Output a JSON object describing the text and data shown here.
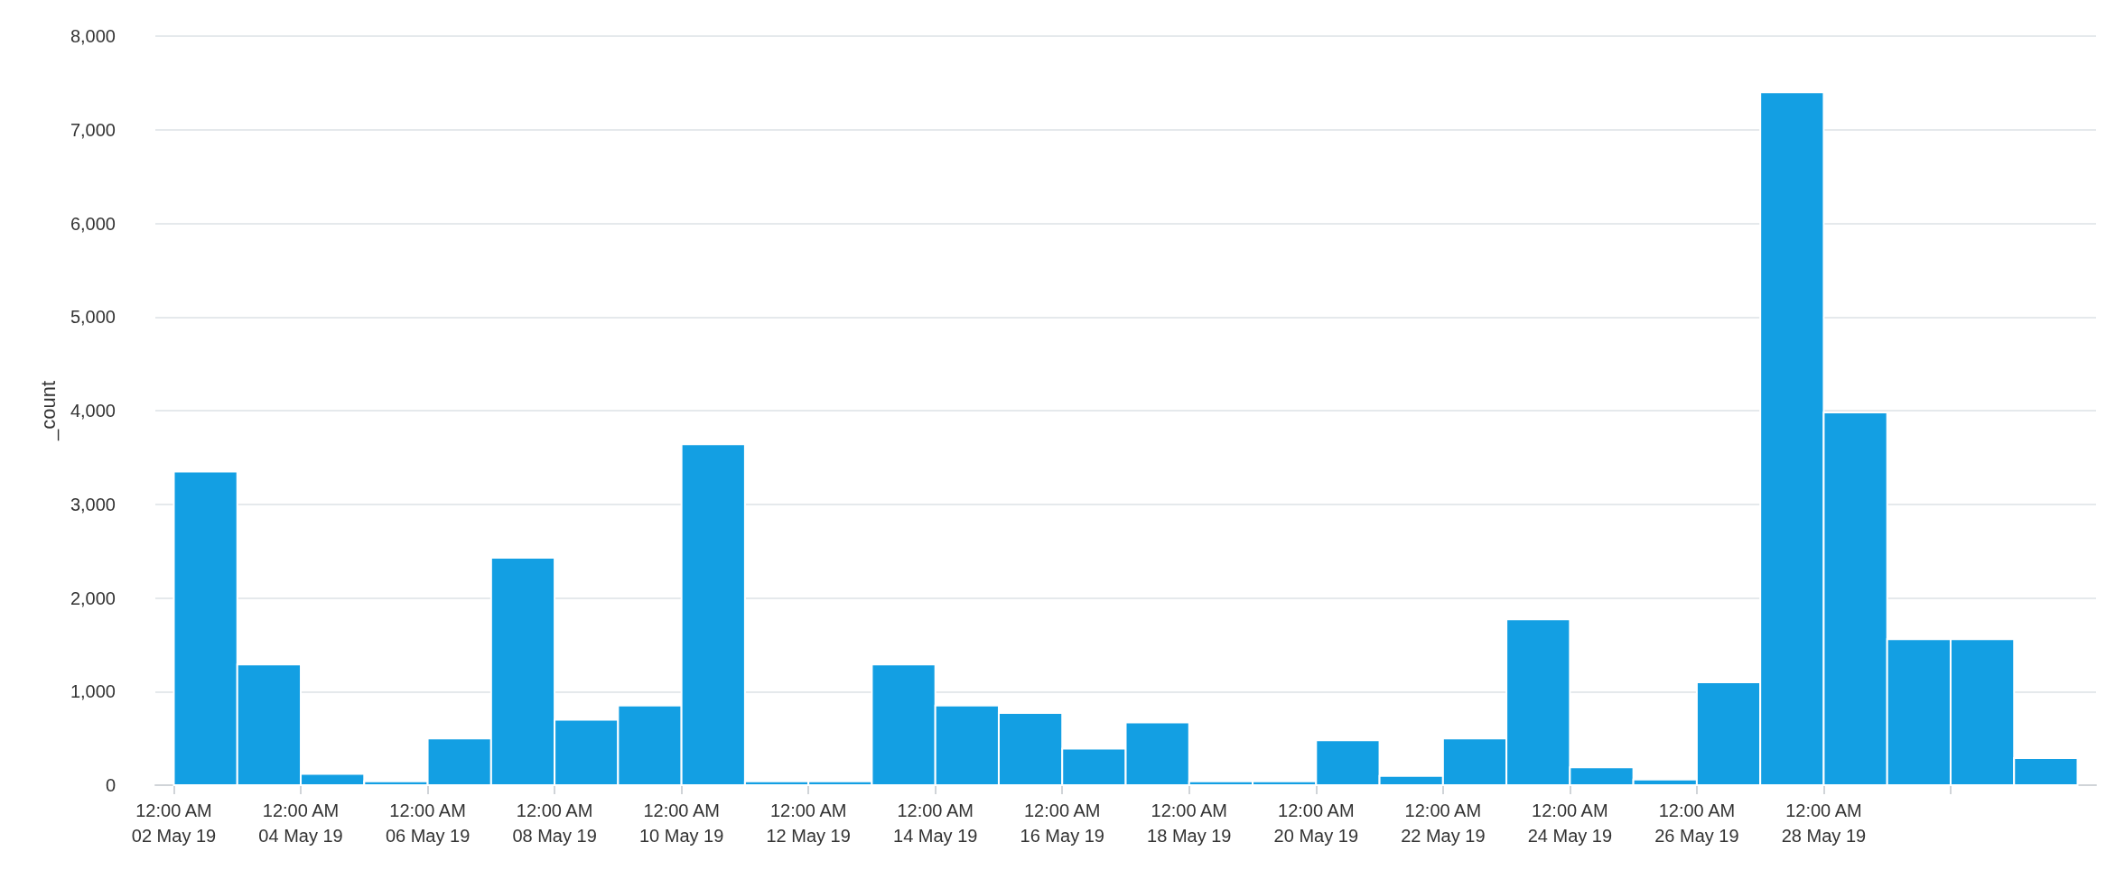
{
  "chart_data": {
    "type": "histogram",
    "ylabel": "_count",
    "color": "#139fe3",
    "bins": [
      "--05-02",
      "--05-03",
      "--05-04",
      "--05-05",
      "--05-06",
      "--05-07",
      "--05-08",
      "--05-09",
      "--05-10",
      "--05-11",
      "--05-12",
      "--05-13",
      "--05-14",
      "--05-15",
      "--05-16",
      "--05-17",
      "--05-18",
      "--05-19",
      "--05-20",
      "--05-21",
      "--05-22",
      "--05-23",
      "--05-24",
      "--05-25",
      "--05-26",
      "--05-27",
      "--05-28",
      "--05-29",
      "--05-30",
      "--05-31",
      "--06-01"
    ],
    "values": [
      3350,
      1290,
      120,
      40,
      500,
      2430,
      700,
      850,
      3640,
      40,
      40,
      1290,
      850,
      770,
      390,
      670,
      40,
      40,
      480,
      100,
      500,
      1770,
      190,
      60,
      1100,
      7400,
      3980,
      1560,
      1560,
      290
    ],
    "xlim": [
      "--05-01T17:00",
      "--06-01T07:00"
    ],
    "xticks": [
      {
        "value": "--05-02",
        "label": "12:00 AM\n02 May 19"
      },
      {
        "value": "--05-04",
        "label": "12:00 AM\n04 May 19"
      },
      {
        "value": "--05-06",
        "label": "12:00 AM\n06 May 19"
      },
      {
        "value": "--05-08",
        "label": "12:00 AM\n08 May 19"
      },
      {
        "value": "--05-10",
        "label": "12:00 AM\n10 May 19"
      },
      {
        "value": "--05-12",
        "label": "12:00 AM\n12 May 19"
      },
      {
        "value": "--05-14",
        "label": "12:00 AM\n14 May 19"
      },
      {
        "value": "--05-16",
        "label": "12:00 AM\n16 May 19"
      },
      {
        "value": "--05-18",
        "label": "12:00 AM\n18 May 19"
      },
      {
        "value": "--05-20",
        "label": "12:00 AM\n20 May 19"
      },
      {
        "value": "--05-22",
        "label": "12:00 AM\n22 May 19"
      },
      {
        "value": "--05-24",
        "label": "12:00 AM\n24 May 19"
      },
      {
        "value": "--05-26",
        "label": "12:00 AM\n26 May 19"
      },
      {
        "value": "--05-28",
        "label": "12:00 AM\n28 May 19"
      },
      {
        "value": "--05-30",
        "label": null
      }
    ],
    "ylim": [
      0,
      8000
    ],
    "yticks": [
      0,
      {
        "value": 1000,
        "label": "1,000"
      },
      {
        "value": 2000,
        "label": "2,000"
      },
      {
        "value": 3000,
        "label": "3,000"
      },
      {
        "value": 4000,
        "label": "4,000"
      },
      {
        "value": 5000,
        "label": "5,000"
      },
      {
        "value": 6000,
        "label": "6,000"
      },
      {
        "value": 7000,
        "label": "7,000"
      },
      {
        "value": 8000,
        "label": "8,000"
      }
    ],
    "grid": "y"
  }
}
